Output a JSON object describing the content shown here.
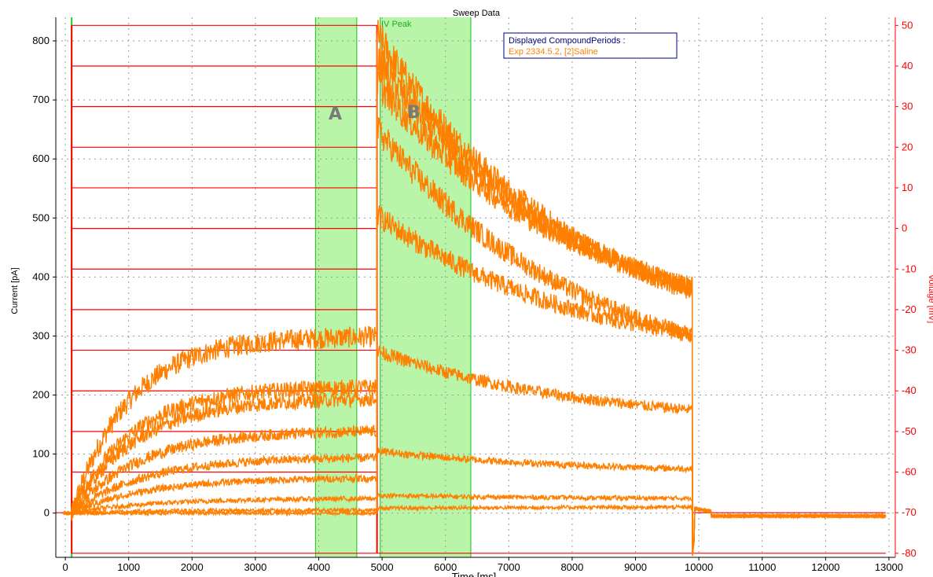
{
  "chart_data": {
    "type": "line",
    "title": "Sweep Data",
    "xlabel": "Time [ms]",
    "ylabel": "Current [pA]",
    "ylabel_right": "Voltage [mV]",
    "xlim": [
      -150,
      13100
    ],
    "ylim": [
      -75,
      840
    ],
    "ylim_right": [
      -81,
      52
    ],
    "x_ticks": [
      0,
      1000,
      2000,
      3000,
      4000,
      5000,
      6000,
      7000,
      8000,
      9000,
      10000,
      11000,
      12000,
      13000
    ],
    "y_ticks": [
      0,
      100,
      200,
      300,
      400,
      500,
      600,
      700,
      800
    ],
    "y_ticks_right": [
      -80,
      -70,
      -60,
      -50,
      -40,
      -30,
      -20,
      -10,
      0,
      10,
      20,
      30,
      40,
      50
    ],
    "grid": true,
    "legend": {
      "position": "top-right",
      "title": "Displayed CompoundPeriods :",
      "entry": "Exp 2334.5.2, [2]Saline"
    },
    "annotations": {
      "region_a_label": "A",
      "region_b_label": "B",
      "iv_peak_label": "IV Peak"
    },
    "regions": [
      {
        "label": "A",
        "x_start": 3950,
        "x_end": 4600
      },
      {
        "label": "B",
        "x_start": 4970,
        "x_end": 6400
      }
    ],
    "cursor_x": 100,
    "colors": {
      "current": "#ff8000",
      "voltage": "#ff0000",
      "region": "#b8f5a8",
      "region_edge": "#33cc33",
      "legend_border": "#000080",
      "legend_text": "#000080"
    },
    "voltage_protocol": {
      "holding_mV": -70,
      "step_start_ms": 100,
      "step_end_ms": 4920,
      "tail_mV": -80,
      "tail_end_ms": 9900,
      "step_levels_mV": [
        -80,
        -60,
        -50,
        -40,
        -30,
        -20,
        -10,
        0,
        10,
        20,
        30,
        40,
        50
      ]
    },
    "series": [
      {
        "step_plateau_pA": 300,
        "peak_tail_pA": 810,
        "end_tail_pA": 375
      },
      {
        "step_plateau_pA": 215,
        "peak_tail_pA": 770,
        "end_tail_pA": 380
      },
      {
        "step_plateau_pA": 195,
        "peak_tail_pA": 730,
        "end_tail_pA": 385
      },
      {
        "step_plateau_pA": 140,
        "peak_tail_pA": 650,
        "end_tail_pA": 302
      },
      {
        "step_plateau_pA": 95,
        "peak_tail_pA": 505,
        "end_tail_pA": 302
      },
      {
        "step_plateau_pA": 60,
        "peak_tail_pA": 275,
        "end_tail_pA": 175
      },
      {
        "step_plateau_pA": 25,
        "peak_tail_pA": 105,
        "end_tail_pA": 75
      },
      {
        "step_plateau_pA": 5,
        "peak_tail_pA": 30,
        "end_tail_pA": 25
      },
      {
        "step_plateau_pA": 0,
        "peak_tail_pA": 8,
        "end_tail_pA": 10
      }
    ]
  }
}
